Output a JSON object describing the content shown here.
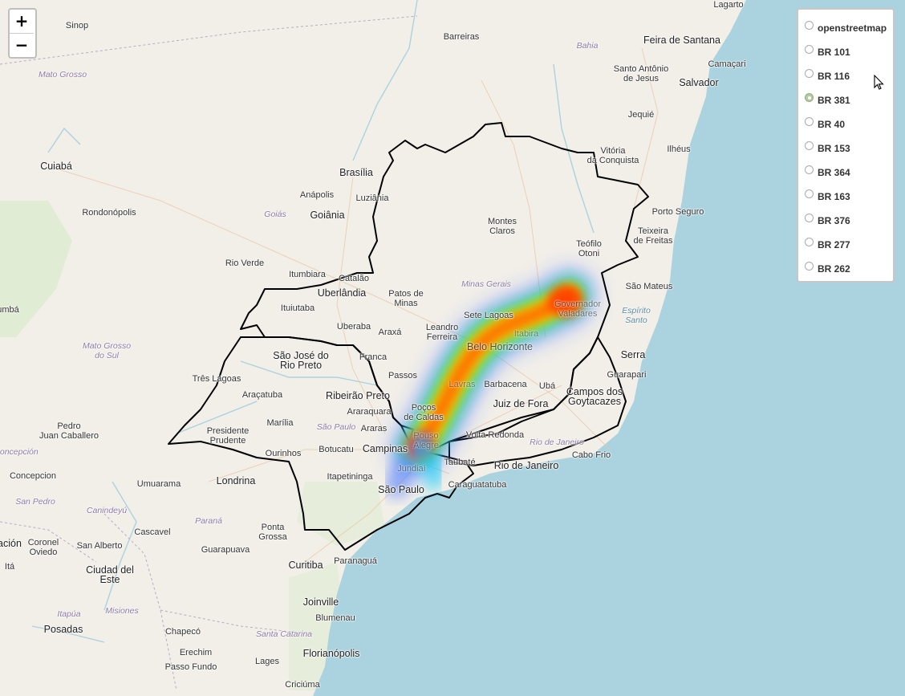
{
  "zoom": {
    "in_label": "+",
    "out_label": "−"
  },
  "layers": {
    "selected": "BR 381",
    "items": [
      "openstreetmap",
      "BR 101",
      "BR 116",
      "BR 381",
      "BR 40",
      "BR 153",
      "BR 364",
      "BR 163",
      "BR 376",
      "BR 277",
      "BR 262"
    ]
  },
  "colors": {
    "land": "#f2efe9",
    "sea": "#aad3df",
    "border": "#000000",
    "accent": "#b5c9a3"
  },
  "map_labels": {
    "lagarto": "Lagarto",
    "sinop": "Sinop",
    "barreiras": "Barreiras",
    "feira": "Feira de Santana",
    "bahia": "Bahia",
    "mato_grosso": "Mato Grosso",
    "santo_antonio": "Santo Antônio\nde Jesus",
    "camacari": "Camaçari",
    "salvador": "Salvador",
    "jequie": "Jequié",
    "cuiaba": "Cuiabá",
    "brasilia": "Brasília",
    "vitoria_conquista": "Vitória\nda Conquista",
    "ilheus": "Ilhéus",
    "anapolis": "Anápolis",
    "luziania": "Luziânia",
    "goias": "Goiás",
    "goiania": "Goiânia",
    "rondonopolis": "Rondonópolis",
    "montes_claros": "Montes\nClaros",
    "porto_seguro": "Porto Seguro",
    "teofilo": "Teófilo\nOtoni",
    "teixeira": "Teixeira\nde Freitas",
    "rio_verde": "Rio Verde",
    "itumbiara": "Itumbiara",
    "catalao": "Catalão",
    "uberlandia": "Uberlândia",
    "minas": "Minas Gerais",
    "patos": "Patos de\nMinas",
    "sao_mateus": "São Mateus",
    "espirito": "Espírito\nSanto",
    "ituiutaba": "Ituiutaba",
    "sete_lagoas": "Sete Lagoas",
    "uberaba": "Uberaba",
    "araxa": "Araxá",
    "leandro": "Leandro\nFerreira",
    "governador": "Governador\nValadares",
    "mato_grosso_sul": "Mato Grosso\ndo Sul",
    "sjrp": "São José do\nRio Preto",
    "franca": "Franca",
    "belo_horizonte": "Belo Horizonte",
    "itabira": "Itabira",
    "serra": "Serra",
    "tres_lagoas": "Três Lagoas",
    "passos": "Passos",
    "guarapari": "Guarapari",
    "barbacena": "Barbacena",
    "uba": "Ubá",
    "aracatuba": "Araçatuba",
    "ribeirao": "Ribeirão Preto",
    "lavras": "Lavras",
    "campos": "Campos dos\nGoytacazes",
    "araraquara": "Araraquara",
    "pocos": "Poços\nde Caldas",
    "juiz_fora": "Juiz de Fora",
    "marilia": "Marília",
    "pedro_jc": "Pedro\nJuan Caballero",
    "sao_paulo_state": "São Paulo",
    "araras": "Araras",
    "presidente": "Presidente\nPrudente",
    "volta_redonda": "Volta Redonda",
    "pouso": "Pouso\nAlegre",
    "botucatu": "Botucatu",
    "campinas": "Campinas",
    "rj_state": "Rio de Janeiro",
    "concepcion_r": "Concepción",
    "ourinhos": "Ourinhos",
    "taubate": "Taubaté",
    "cabo_frio": "Cabo Frio",
    "rio": "Rio de Janeiro",
    "jundiai": "Jundiaí",
    "concepcion": "Concepcion",
    "itapetininga": "Itapetininga",
    "londrina": "Londrina",
    "umuarama": "Umuarama",
    "sao_paulo": "São Paulo",
    "caraguatatuba": "Caraguatatuba",
    "san_pedro": "San Pedro",
    "canindeyu": "Canindeyú",
    "parana": "Paraná",
    "ponta_grossa": "Ponta\nGrossa",
    "cascavel": "Cascavel",
    "guarapuava": "Guarapuava",
    "san_alberto": "San Alberto",
    "coronel": "Coronel\nOviedo",
    "acion": "ación",
    "curitiba": "Curitiba",
    "paranagua": "Paranaguá",
    "ciudad": "Ciudad del\nEste",
    "ita": "Itá",
    "joinville": "Joinville",
    "itapua": "Itapúa",
    "misiones": "Misiones",
    "blumenau": "Blumenau",
    "posadas": "Posadas",
    "chapeco": "Chapecó",
    "santa_catarina": "Santa Catarina",
    "florianopolis": "Florianópolis",
    "erechim": "Erechim",
    "lages": "Lages",
    "passo_fundo": "Passo Fundo",
    "criciuma": "Criciúma",
    "umba": "umbá"
  }
}
